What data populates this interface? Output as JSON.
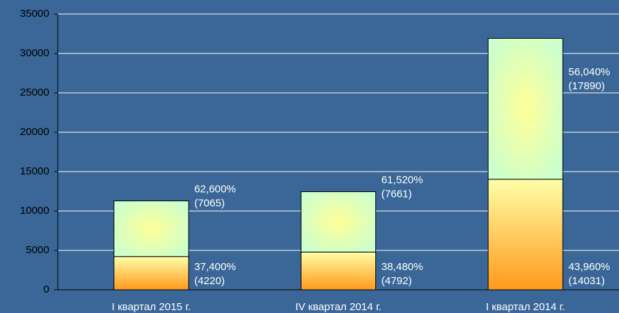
{
  "chart_data": {
    "type": "stacked_bar",
    "categories": [
      "I квартал  2015 г.",
      "IV квартал  2014 г.",
      "I квартал  2014 г."
    ],
    "series": [
      {
        "color": "#ff9a1a",
        "values": [
          4220,
          4792,
          14031
        ],
        "value_labels": [
          "(4220)",
          "(4792)",
          "(14031)"
        ],
        "share_labels": [
          "37,400%",
          "38,480%",
          "43,960%"
        ]
      },
      {
        "color": "#ccffcc",
        "values": [
          7065,
          7661,
          17890
        ],
        "value_labels": [
          "(7065)",
          "(7661)",
          "(17890)"
        ],
        "share_labels": [
          "62,600%",
          "61,520%",
          "56,040%"
        ]
      }
    ],
    "ylim": [
      0,
      35000
    ],
    "yticks": [
      0,
      5000,
      10000,
      15000,
      20000,
      25000,
      30000,
      35000
    ],
    "grid": true
  }
}
